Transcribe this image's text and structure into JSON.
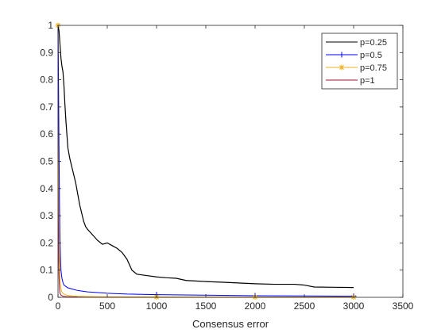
{
  "chart_data": {
    "type": "line",
    "title": "",
    "xlabel": "Consensus error",
    "ylabel": "",
    "xlim": [
      0,
      3500
    ],
    "ylim": [
      0,
      1
    ],
    "x_ticks": [
      "0",
      "500",
      "1000",
      "1500",
      "2000",
      "2500",
      "3000",
      "3500"
    ],
    "y_ticks": [
      "0",
      "0.1",
      "0.2",
      "0.3",
      "0.4",
      "0.5",
      "0.6",
      "0.7",
      "0.8",
      "0.9",
      "1"
    ],
    "x_tick_values": [
      0,
      500,
      1000,
      1500,
      2000,
      2500,
      3000,
      3500
    ],
    "y_tick_values": [
      0,
      0.1,
      0.2,
      0.3,
      0.4,
      0.5,
      0.6,
      0.7,
      0.8,
      0.9,
      1
    ],
    "grid": false,
    "legend_position": "top-right",
    "series": [
      {
        "name": "p=0.25",
        "color": "#000000",
        "marker": "none",
        "x": [
          0,
          10,
          20,
          30,
          40,
          50,
          60,
          70,
          80,
          90,
          100,
          120,
          140,
          160,
          180,
          200,
          220,
          240,
          260,
          280,
          300,
          350,
          400,
          450,
          500,
          550,
          600,
          650,
          700,
          750,
          800,
          900,
          1000,
          1100,
          1200,
          1300,
          1500,
          1700,
          2000,
          2200,
          2400,
          2500,
          2600,
          2800,
          3000
        ],
        "y": [
          1.0,
          0.98,
          0.93,
          0.88,
          0.85,
          0.83,
          0.78,
          0.71,
          0.65,
          0.6,
          0.55,
          0.51,
          0.48,
          0.45,
          0.42,
          0.38,
          0.34,
          0.31,
          0.28,
          0.26,
          0.25,
          0.23,
          0.21,
          0.195,
          0.2,
          0.19,
          0.18,
          0.165,
          0.14,
          0.1,
          0.085,
          0.08,
          0.075,
          0.072,
          0.07,
          0.062,
          0.058,
          0.055,
          0.05,
          0.048,
          0.048,
          0.045,
          0.038,
          0.037,
          0.036
        ]
      },
      {
        "name": "p=0.5",
        "color": "#0000ff",
        "marker": "plus",
        "x": [
          0,
          5,
          10,
          15,
          20,
          25,
          30,
          40,
          50,
          60,
          80,
          100,
          150,
          200,
          300,
          500,
          700,
          1000,
          1500,
          2000,
          2500,
          3000
        ],
        "y": [
          1.0,
          0.8,
          0.55,
          0.35,
          0.22,
          0.15,
          0.1,
          0.07,
          0.055,
          0.045,
          0.04,
          0.035,
          0.03,
          0.025,
          0.02,
          0.015,
          0.012,
          0.01,
          0.008,
          0.006,
          0.005,
          0.004
        ]
      },
      {
        "name": "p=0.75",
        "color": "#edb120",
        "marker": "star",
        "x": [
          0,
          5,
          10,
          15,
          20,
          25,
          30,
          40,
          50,
          70,
          100,
          150,
          200,
          300,
          500,
          1000,
          2000,
          3000
        ],
        "y": [
          1.0,
          0.6,
          0.3,
          0.15,
          0.08,
          0.05,
          0.03,
          0.02,
          0.015,
          0.01,
          0.007,
          0.005,
          0.004,
          0.003,
          0.002,
          0.0015,
          0.001,
          0.001
        ]
      },
      {
        "name": "p=1",
        "color": "#a2142f",
        "marker": "none",
        "x": [
          0,
          3,
          6,
          10,
          15,
          20,
          30,
          50,
          100,
          200,
          500,
          1000,
          2000,
          3000
        ],
        "y": [
          1.0,
          0.5,
          0.2,
          0.08,
          0.03,
          0.015,
          0.008,
          0.004,
          0.002,
          0.001,
          0.0005,
          0.0003,
          0.0002,
          0.0002
        ]
      }
    ],
    "marker_points": {
      "p=0.5": [
        0,
        1000,
        2000,
        3000
      ],
      "p=0.75": [
        0,
        1000,
        2000,
        3000
      ]
    }
  }
}
